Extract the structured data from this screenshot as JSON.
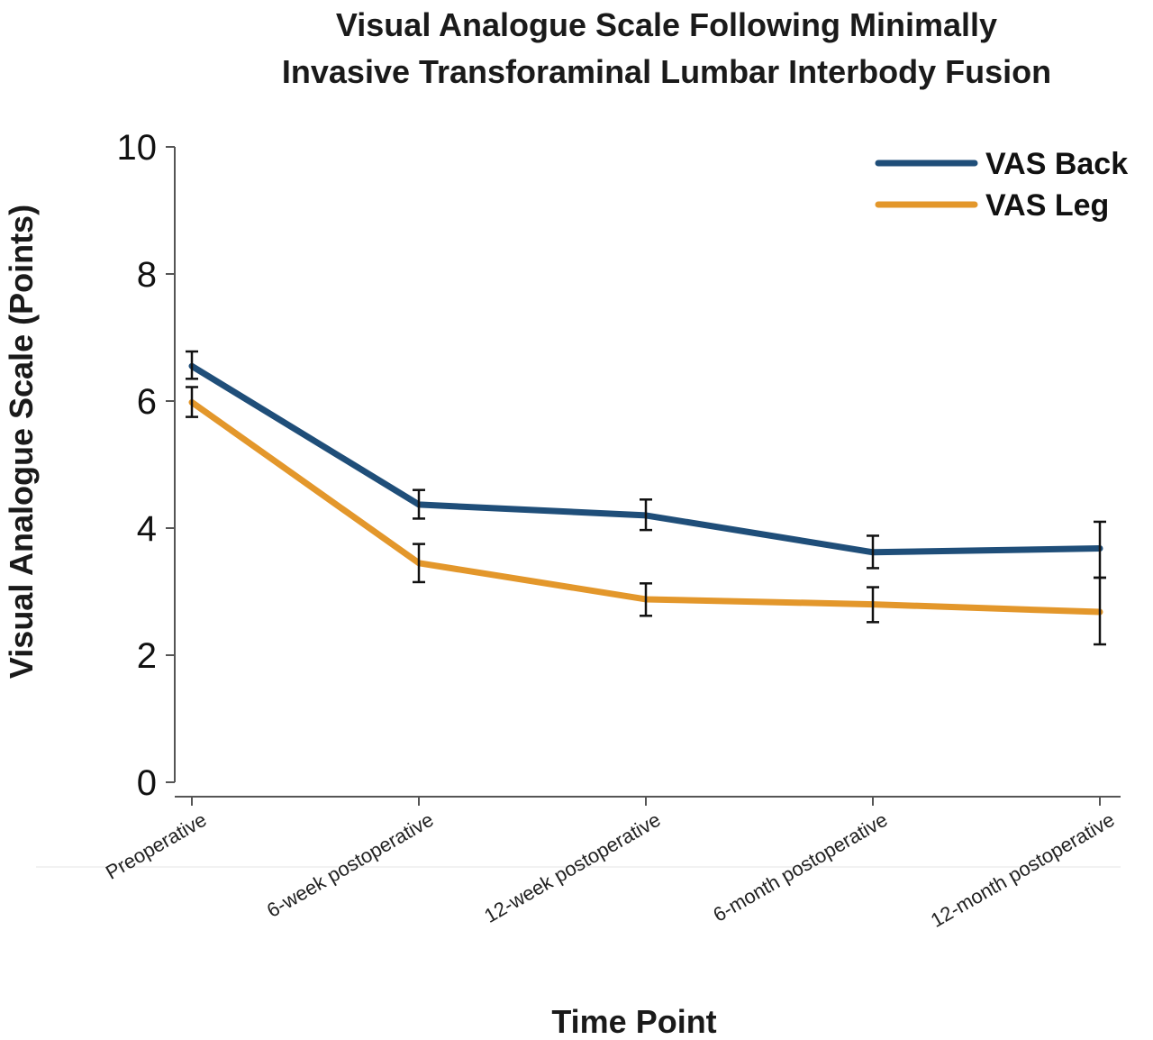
{
  "chart_data": {
    "type": "line",
    "title": [
      "Visual Analogue Scale Following Minimally",
      "Invasive Transforaminal Lumbar Interbody Fusion"
    ],
    "xlabel": "Time Point",
    "ylabel": "Visual Analogue Scale (Points)",
    "categories": [
      "Preoperative",
      "6-week postoperative",
      "12-week postoperative",
      "6-month postoperative",
      "12-month postoperative"
    ],
    "ylim": [
      0,
      10
    ],
    "yticks": [
      "0",
      "2",
      "4",
      "6",
      "8",
      "10"
    ],
    "grid": false,
    "legend": "top-right",
    "series": [
      {
        "name": "VAS Back",
        "color": "#1f4e79",
        "values": [
          6.55,
          4.37,
          4.2,
          3.62,
          3.68
        ],
        "err_low": [
          6.35,
          4.15,
          3.97,
          3.37,
          3.22
        ],
        "err_high": [
          6.78,
          4.6,
          4.45,
          3.88,
          4.1
        ]
      },
      {
        "name": "VAS Leg",
        "color": "#e3972b",
        "values": [
          5.98,
          3.45,
          2.88,
          2.8,
          2.68
        ],
        "err_low": [
          5.75,
          3.15,
          2.62,
          2.52,
          2.17
        ],
        "err_high": [
          6.22,
          3.75,
          3.13,
          3.07,
          3.22
        ]
      }
    ]
  }
}
